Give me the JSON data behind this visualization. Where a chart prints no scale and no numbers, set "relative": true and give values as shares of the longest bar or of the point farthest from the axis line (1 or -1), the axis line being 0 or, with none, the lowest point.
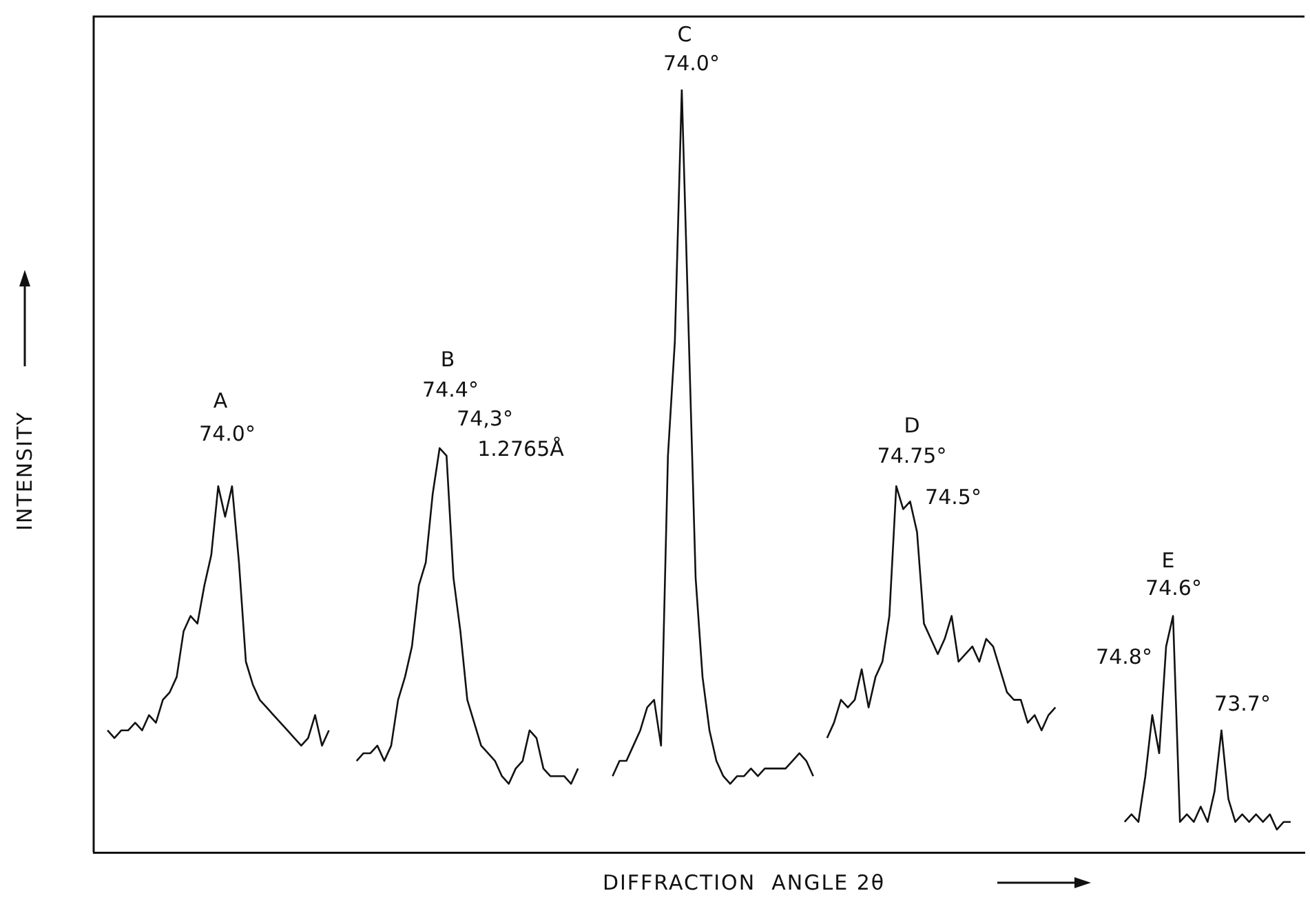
{
  "chart_data": {
    "type": "line",
    "relative": true,
    "xlabel": "DIFFRACTION  ANGLE 2θ",
    "ylabel": "INTENSITY",
    "annotations": [
      "A",
      "74.0°",
      "B",
      "74.4°",
      "74,3°",
      "1.2765Å",
      "C",
      "74.0°",
      "D",
      "74.75°",
      "74.5°",
      "E",
      "74.6°",
      "74.8°",
      "73.7°"
    ],
    "categories": [
      null,
      null,
      null,
      null,
      null,
      null,
      null,
      null,
      null,
      null,
      null,
      null,
      null,
      null,
      null,
      null,
      null,
      null,
      null,
      null,
      null,
      null,
      null,
      null,
      null,
      null,
      null,
      null,
      null,
      null,
      null,
      null,
      null,
      null,
      null,
      null,
      null,
      null,
      null,
      null,
      null,
      null,
      null,
      null,
      null,
      null,
      null,
      null,
      null,
      null,
      null,
      null,
      null,
      null,
      null,
      null,
      null,
      null,
      null,
      null,
      null,
      null,
      null,
      null,
      null,
      null,
      null,
      null,
      null,
      null,
      null,
      null,
      null,
      null,
      null,
      null,
      null,
      null,
      null,
      null,
      null,
      null,
      null,
      null,
      null,
      null,
      null,
      null,
      null,
      null,
      null,
      null,
      null,
      null,
      null,
      null,
      null,
      null,
      null,
      null,
      null,
      null,
      null,
      null,
      null,
      null,
      null,
      null,
      null,
      null,
      null,
      null,
      null,
      null,
      null,
      null,
      null,
      null,
      null,
      null,
      null,
      null,
      null,
      null,
      null,
      null,
      null,
      null,
      null,
      null,
      null,
      null,
      null,
      null,
      null,
      null,
      null,
      null,
      null,
      null,
      null,
      null,
      null,
      null,
      null,
      null,
      null,
      null,
      null,
      null,
      null,
      null,
      null,
      null,
      null,
      null,
      null,
      null,
      null,
      null,
      null,
      null,
      null,
      null,
      null,
      null,
      null,
      null,
      null,
      null,
      null,
      null,
      null,
      null,
      null,
      null
    ],
    "series": [
      {
        "color": "#111111",
        "values": [
          null,
          null,
          0.16,
          0.15,
          0.16,
          0.16,
          0.17,
          0.16,
          0.18,
          0.17,
          0.2,
          0.21,
          0.23,
          0.29,
          0.31,
          0.3,
          0.35,
          0.39,
          0.48,
          0.44,
          0.48,
          0.38,
          0.25,
          0.22,
          0.2,
          0.19,
          0.18,
          0.17,
          0.16,
          0.15,
          0.14,
          0.15,
          0.18,
          0.14,
          0.16,
          null,
          null,
          null,
          null,
          null,
          null,
          null,
          null,
          null,
          null,
          null,
          null,
          null,
          null,
          null,
          null,
          null,
          null,
          null,
          null,
          null,
          null,
          null,
          null,
          null,
          null,
          null,
          null,
          null,
          null,
          null,
          null,
          null,
          null,
          null,
          null,
          null,
          null,
          null,
          null,
          null,
          null,
          null,
          null,
          null,
          null,
          null,
          null,
          null,
          null,
          null,
          null,
          null,
          null,
          null,
          null,
          null,
          null,
          null,
          null,
          null,
          null,
          null,
          null,
          null,
          null,
          null,
          null,
          null,
          null,
          null,
          null,
          null,
          null,
          null,
          null,
          null,
          null,
          null,
          null,
          null,
          null,
          null,
          null,
          null,
          null,
          null,
          null,
          null,
          null,
          null,
          null,
          null,
          null,
          null,
          null,
          null,
          null,
          null,
          null,
          null,
          null,
          null,
          null,
          null,
          null,
          null,
          null,
          null,
          null,
          null,
          null,
          null,
          null,
          null,
          null,
          null,
          null,
          null,
          null,
          null,
          null,
          null,
          null,
          null,
          null,
          null,
          null,
          null,
          null,
          null,
          null,
          null,
          null,
          null,
          null,
          null,
          null,
          null,
          null,
          null
        ]
      },
      {
        "color": "#111111",
        "values": [
          null,
          null,
          null,
          null,
          null,
          null,
          null,
          null,
          null,
          null,
          null,
          null,
          null,
          null,
          null,
          null,
          null,
          null,
          null,
          null,
          null,
          null,
          null,
          null,
          null,
          null,
          null,
          null,
          null,
          null,
          null,
          null,
          null,
          null,
          null,
          null,
          null,
          null,
          0.12,
          0.13,
          0.13,
          0.14,
          0.12,
          0.14,
          0.2,
          0.23,
          0.27,
          0.35,
          0.38,
          0.47,
          0.53,
          0.52,
          0.36,
          0.29,
          0.2,
          0.17,
          0.14,
          0.13,
          0.12,
          0.1,
          0.09,
          0.11,
          0.12,
          0.16,
          0.15,
          0.11,
          0.1,
          0.1,
          0.1,
          0.09,
          0.11,
          null,
          null,
          null,
          null,
          null,
          null,
          null,
          null,
          null,
          null,
          null,
          null,
          null,
          null,
          null,
          null,
          null,
          null,
          null,
          null,
          null,
          null,
          null,
          null,
          null,
          null,
          null,
          null,
          null,
          null,
          null,
          null,
          null,
          null,
          null,
          null,
          null,
          null,
          null,
          null,
          null,
          null,
          null,
          null,
          null,
          null,
          null,
          null,
          null,
          null,
          null,
          null,
          null,
          null,
          null,
          null,
          null,
          null,
          null,
          null,
          null,
          null,
          null,
          null,
          null,
          null,
          null,
          null,
          null,
          null,
          null,
          null,
          null,
          null,
          null,
          null,
          null,
          null,
          null,
          null,
          null,
          null,
          null,
          null,
          null,
          null,
          null,
          null,
          null,
          null,
          null,
          null,
          null,
          null,
          null,
          null,
          null,
          null,
          null,
          null,
          null,
          null,
          null,
          null,
          null
        ]
      },
      {
        "color": "#111111",
        "values": [
          null,
          null,
          null,
          null,
          null,
          null,
          null,
          null,
          null,
          null,
          null,
          null,
          null,
          null,
          null,
          null,
          null,
          null,
          null,
          null,
          null,
          null,
          null,
          null,
          null,
          null,
          null,
          null,
          null,
          null,
          null,
          null,
          null,
          null,
          null,
          null,
          null,
          null,
          null,
          null,
          null,
          null,
          null,
          null,
          null,
          null,
          null,
          null,
          null,
          null,
          null,
          null,
          null,
          null,
          null,
          null,
          null,
          null,
          null,
          null,
          null,
          null,
          null,
          null,
          null,
          null,
          null,
          null,
          null,
          null,
          null,
          null,
          null,
          null,
          null,
          0.1,
          0.12,
          0.12,
          0.14,
          0.16,
          0.19,
          0.2,
          0.14,
          0.52,
          0.67,
          1,
          0.68,
          0.36,
          0.23,
          0.16,
          0.12,
          0.1,
          0.09,
          0.1,
          0.1,
          0.11,
          0.1,
          0.11,
          0.11,
          0.11,
          0.11,
          0.12,
          0.13,
          0.12,
          0.1,
          null,
          null,
          null,
          null,
          null,
          null,
          null,
          null,
          null,
          null,
          null,
          null,
          null,
          null,
          null,
          null,
          null,
          null,
          null,
          null,
          null,
          null,
          null,
          null,
          null,
          null,
          null,
          null,
          null,
          null,
          null,
          null,
          null,
          null,
          null,
          null,
          null,
          null,
          null,
          null,
          null,
          null,
          null,
          null,
          null,
          null,
          null,
          null,
          null,
          null,
          null,
          null,
          null,
          null,
          null,
          null,
          null,
          null,
          null,
          null,
          null,
          null,
          null,
          null,
          null,
          null,
          null,
          null,
          null,
          null,
          null
        ]
      },
      {
        "color": "#111111",
        "values": [
          null,
          null,
          null,
          null,
          null,
          null,
          null,
          null,
          null,
          null,
          null,
          null,
          null,
          null,
          null,
          null,
          null,
          null,
          null,
          null,
          null,
          null,
          null,
          null,
          null,
          null,
          null,
          null,
          null,
          null,
          null,
          null,
          null,
          null,
          null,
          null,
          null,
          null,
          null,
          null,
          null,
          null,
          null,
          null,
          null,
          null,
          null,
          null,
          null,
          null,
          null,
          null,
          null,
          null,
          null,
          null,
          null,
          null,
          null,
          null,
          null,
          null,
          null,
          null,
          null,
          null,
          null,
          null,
          null,
          null,
          null,
          null,
          null,
          null,
          null,
          null,
          null,
          null,
          null,
          null,
          null,
          null,
          null,
          null,
          null,
          null,
          null,
          null,
          null,
          null,
          null,
          null,
          null,
          null,
          null,
          null,
          null,
          null,
          null,
          null,
          null,
          null,
          null,
          null,
          null,
          null,
          0.15,
          0.17,
          0.2,
          0.19,
          0.2,
          0.24,
          0.19,
          0.23,
          0.25,
          0.31,
          0.48,
          0.45,
          0.46,
          0.42,
          0.3,
          0.28,
          0.26,
          0.28,
          0.31,
          0.25,
          0.26,
          0.27,
          0.25,
          0.28,
          0.27,
          0.24,
          0.21,
          0.2,
          0.2,
          0.17,
          0.18,
          0.16,
          0.18,
          0.19,
          null,
          null,
          null,
          null,
          null,
          null,
          null,
          null,
          null,
          null,
          null,
          null,
          null,
          null,
          null,
          null,
          null,
          null,
          null,
          null,
          null,
          null,
          null,
          null,
          null,
          null,
          null,
          null,
          null,
          null,
          null,
          null,
          null,
          null,
          null,
          null
        ]
      },
      {
        "color": "#111111",
        "values": [
          null,
          null,
          null,
          null,
          null,
          null,
          null,
          null,
          null,
          null,
          null,
          null,
          null,
          null,
          null,
          null,
          null,
          null,
          null,
          null,
          null,
          null,
          null,
          null,
          null,
          null,
          null,
          null,
          null,
          null,
          null,
          null,
          null,
          null,
          null,
          null,
          null,
          null,
          null,
          null,
          null,
          null,
          null,
          null,
          null,
          null,
          null,
          null,
          null,
          null,
          null,
          null,
          null,
          null,
          null,
          null,
          null,
          null,
          null,
          null,
          null,
          null,
          null,
          null,
          null,
          null,
          null,
          null,
          null,
          null,
          null,
          null,
          null,
          null,
          null,
          null,
          null,
          null,
          null,
          null,
          null,
          null,
          null,
          null,
          null,
          null,
          null,
          null,
          null,
          null,
          null,
          null,
          null,
          null,
          null,
          null,
          null,
          null,
          null,
          null,
          null,
          null,
          null,
          null,
          null,
          null,
          null,
          null,
          null,
          null,
          null,
          null,
          null,
          null,
          null,
          null,
          null,
          null,
          null,
          null,
          null,
          null,
          null,
          null,
          null,
          null,
          null,
          null,
          null,
          null,
          null,
          null,
          null,
          null,
          null,
          null,
          null,
          null,
          null,
          null,
          null,
          null,
          null,
          null,
          null,
          null,
          null,
          null,
          null,
          0.04,
          0.05,
          0.04,
          0.1,
          0.18,
          0.13,
          0.27,
          0.31,
          0.04,
          0.05,
          0.04,
          0.06,
          0.04,
          0.08,
          0.16,
          0.07,
          0.04,
          0.05,
          0.04,
          0.05,
          0.04,
          0.05,
          0.03,
          0.04,
          0.04,
          null,
          null
        ]
      }
    ]
  }
}
